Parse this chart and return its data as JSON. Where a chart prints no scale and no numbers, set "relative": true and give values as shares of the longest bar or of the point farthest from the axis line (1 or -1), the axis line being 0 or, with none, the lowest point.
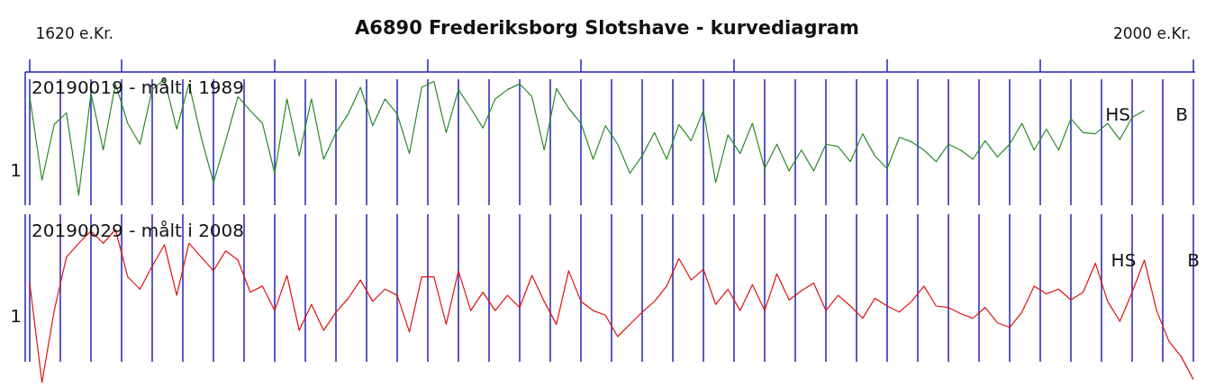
{
  "chart_data": [
    {
      "type": "line",
      "title": "A6890 Frederiksborg Slotshave - kurvediagram",
      "subtitle": "20190019 - målt i 1989",
      "relative": true,
      "grid": "x",
      "categories": [
        null,
        null,
        null,
        null,
        null,
        null,
        null,
        null,
        null,
        null,
        null,
        null,
        null,
        null,
        null,
        null,
        null,
        null,
        null,
        null,
        null,
        null,
        null,
        null,
        null,
        null,
        null,
        null,
        null,
        null,
        null,
        null,
        null,
        null,
        null,
        null,
        null,
        null,
        null,
        null,
        null,
        null,
        null,
        null,
        null,
        null,
        null,
        null,
        null,
        null,
        null,
        null,
        null,
        null,
        null,
        null,
        null,
        null,
        null,
        null,
        null,
        null,
        null,
        null,
        null,
        null,
        null,
        null,
        null,
        null,
        null,
        null,
        null,
        null,
        null,
        null,
        null,
        null,
        null,
        null,
        null,
        null,
        null,
        null,
        null,
        null,
        null,
        null,
        null,
        null,
        null,
        null,
        null,
        null,
        null,
        null
      ],
      "series": [
        {
          "color": "#2a8a2a",
          "values": [
            0.85,
            0.13,
            0.61,
            0.71,
            0,
            0.88,
            0.39,
            0.96,
            0.62,
            0.44,
            0.91,
            1,
            0.57,
            0.96,
            0.5,
            0.11,
            0.47,
            0.85,
            0.73,
            0.62,
            0.19,
            0.83,
            0.34,
            0.83,
            0.31,
            0.54,
            0.7,
            0.93,
            0.6,
            0.83,
            0.7,
            0.36,
            0.93,
            0.98,
            0.54,
            0.91,
            0.75,
            0.58,
            0.83,
            0.91,
            0.96,
            0.85,
            0.39,
            0.92,
            0.75,
            0.62,
            0.31,
            0.6,
            0.44,
            0.19,
            0.34,
            0.54,
            0.31,
            0.61,
            0.47,
            0.73,
            0.11,
            0.52,
            0.36,
            0.62,
            0.23,
            0.44,
            0.21,
            0.39,
            0.21,
            0.44,
            0.42,
            0.29,
            0.53,
            0.34,
            0.23,
            0.5,
            0.46,
            0.39,
            0.29,
            0.44,
            0.39,
            0.31,
            0.47,
            0.33,
            0.44,
            0.62,
            0.39,
            0.57,
            0.39,
            0.66,
            0.54,
            0.53,
            0.62,
            0.48,
            0.67,
            0.73,
            null,
            null,
            null,
            null
          ]
        }
      ],
      "annotations": [
        "1620 e.Kr.",
        "2000 e.Kr.",
        "1",
        "HS",
        "B"
      ]
    },
    {
      "type": "line",
      "title": "20190029 - målt i 2008",
      "relative": true,
      "grid": "x",
      "categories": [
        null,
        null,
        null,
        null,
        null,
        null,
        null,
        null,
        null,
        null,
        null,
        null,
        null,
        null,
        null,
        null,
        null,
        null,
        null,
        null,
        null,
        null,
        null,
        null,
        null,
        null,
        null,
        null,
        null,
        null,
        null,
        null,
        null,
        null,
        null,
        null,
        null,
        null,
        null,
        null,
        null,
        null,
        null,
        null,
        null,
        null,
        null,
        null,
        null,
        null,
        null,
        null,
        null,
        null,
        null,
        null,
        null,
        null,
        null,
        null,
        null,
        null,
        null,
        null,
        null,
        null,
        null,
        null,
        null,
        null,
        null,
        null,
        null,
        null,
        null,
        null,
        null,
        null,
        null,
        null,
        null,
        null,
        null,
        null,
        null,
        null,
        null,
        null,
        null,
        null,
        null,
        null,
        null,
        null,
        null,
        null
      ],
      "series": [
        {
          "color": "#e01010",
          "values": [
            0.65,
            0,
            0.47,
            0.82,
            0.91,
            0.99,
            0.91,
            1,
            0.69,
            0.61,
            0.76,
            0.9,
            0.57,
            0.91,
            0.82,
            0.73,
            0.86,
            0.8,
            0.59,
            0.63,
            0.47,
            0.7,
            0.34,
            0.51,
            0.34,
            0.46,
            0.55,
            0.67,
            0.53,
            0.61,
            0.57,
            0.33,
            0.69,
            0.69,
            0.38,
            0.73,
            0.47,
            0.59,
            0.47,
            0.57,
            0.49,
            0.7,
            0.53,
            0.38,
            0.73,
            0.53,
            0.47,
            0.44,
            0.3,
            0.38,
            0.46,
            0.53,
            0.63,
            0.81,
            0.67,
            0.74,
            0.51,
            0.61,
            0.47,
            0.64,
            0.47,
            0.71,
            0.54,
            0.6,
            0.65,
            0.47,
            0.57,
            0.5,
            0.42,
            0.55,
            0.5,
            0.46,
            0.53,
            0.63,
            0.5,
            0.49,
            0.45,
            0.42,
            0.49,
            0.39,
            0.36,
            0.46,
            0.63,
            0.58,
            0.61,
            0.54,
            0.59,
            0.78,
            0.53,
            0.4,
            0.59,
            0.8,
            0.47,
            0.27,
            0.17,
            0.02
          ]
        }
      ],
      "annotations": [
        "1",
        "HS",
        "B"
      ]
    }
  ]
}
